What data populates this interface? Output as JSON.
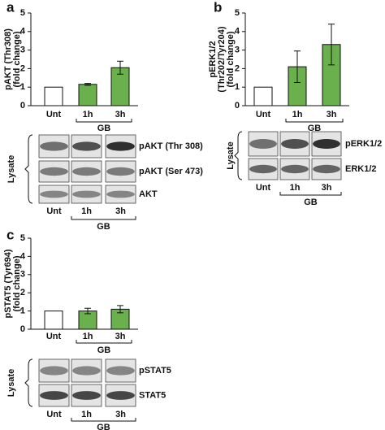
{
  "chart_data": [
    {
      "type": "bar",
      "panel": "a",
      "ylabel": [
        "pAKT (Thr308)",
        "(fold change)"
      ],
      "categories": [
        "Unt",
        "1h",
        "3h"
      ],
      "group_label": "GB",
      "values": [
        1,
        1.15,
        2.05
      ],
      "errors": [
        0,
        0.05,
        0.35
      ],
      "colors": [
        "#ffffff",
        "#6ab04c",
        "#6ab04c"
      ],
      "ylim": [
        0,
        5
      ],
      "yticks": [
        0,
        1,
        2,
        3,
        4,
        5
      ],
      "blot": {
        "side_label": "Lysate",
        "bands": [
          "pAKT (Thr 308)",
          "pAKT (Ser 473)",
          "AKT"
        ],
        "lanes": [
          "Unt",
          "1h",
          "3h"
        ],
        "group_label": "GB"
      }
    },
    {
      "type": "bar",
      "panel": "b",
      "ylabel": [
        "pERK1/2",
        "(Thr202/Tyr204)",
        "(fold change)"
      ],
      "categories": [
        "Unt",
        "1h",
        "3h"
      ],
      "group_label": "GB",
      "values": [
        1,
        2.1,
        3.3
      ],
      "errors": [
        0,
        0.85,
        1.1
      ],
      "colors": [
        "#ffffff",
        "#6ab04c",
        "#6ab04c"
      ],
      "ylim": [
        0,
        5
      ],
      "yticks": [
        0,
        1,
        2,
        3,
        4,
        5
      ],
      "blot": {
        "side_label": "Lysate",
        "bands": [
          "pERK1/2",
          "ERK1/2"
        ],
        "lanes": [
          "Unt",
          "1h",
          "3h"
        ],
        "group_label": "GB"
      }
    },
    {
      "type": "bar",
      "panel": "c",
      "ylabel": [
        "pSTAT5 (Tyr694)",
        "(fold change)"
      ],
      "categories": [
        "Unt",
        "1h",
        "3h"
      ],
      "group_label": "GB",
      "values": [
        1,
        1.0,
        1.1
      ],
      "errors": [
        0,
        0.15,
        0.2
      ],
      "colors": [
        "#ffffff",
        "#6ab04c",
        "#6ab04c"
      ],
      "ylim": [
        0,
        5
      ],
      "yticks": [
        0,
        1,
        2,
        3,
        4,
        5
      ],
      "blot": {
        "side_label": "Lysate",
        "bands": [
          "pSTAT5",
          "STAT5"
        ],
        "lanes": [
          "Unt",
          "1h",
          "3h"
        ],
        "group_label": "GB"
      }
    }
  ]
}
